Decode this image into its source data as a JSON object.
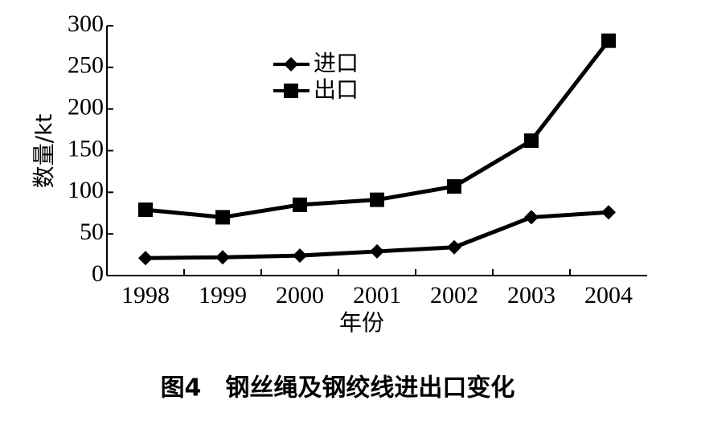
{
  "chart_data": {
    "type": "line",
    "caption": "图4　钢丝绳及钢绞线进出口变化",
    "x_label": "年份",
    "y_label": "数量/kt",
    "categories": [
      "1998",
      "1999",
      "2000",
      "2001",
      "2002",
      "2003",
      "2004"
    ],
    "series": [
      {
        "name": "进口",
        "color": "#000000",
        "marker": "diamond",
        "values": [
          21,
          22,
          24,
          29,
          34,
          70,
          76
        ]
      },
      {
        "name": "出口",
        "color": "#000000",
        "marker": "square",
        "values": [
          79,
          70,
          85,
          91,
          107,
          162,
          282
        ]
      }
    ],
    "ylim": [
      0,
      300
    ],
    "yticks": [
      0,
      50,
      100,
      150,
      200,
      250,
      300
    ],
    "grid": false
  }
}
